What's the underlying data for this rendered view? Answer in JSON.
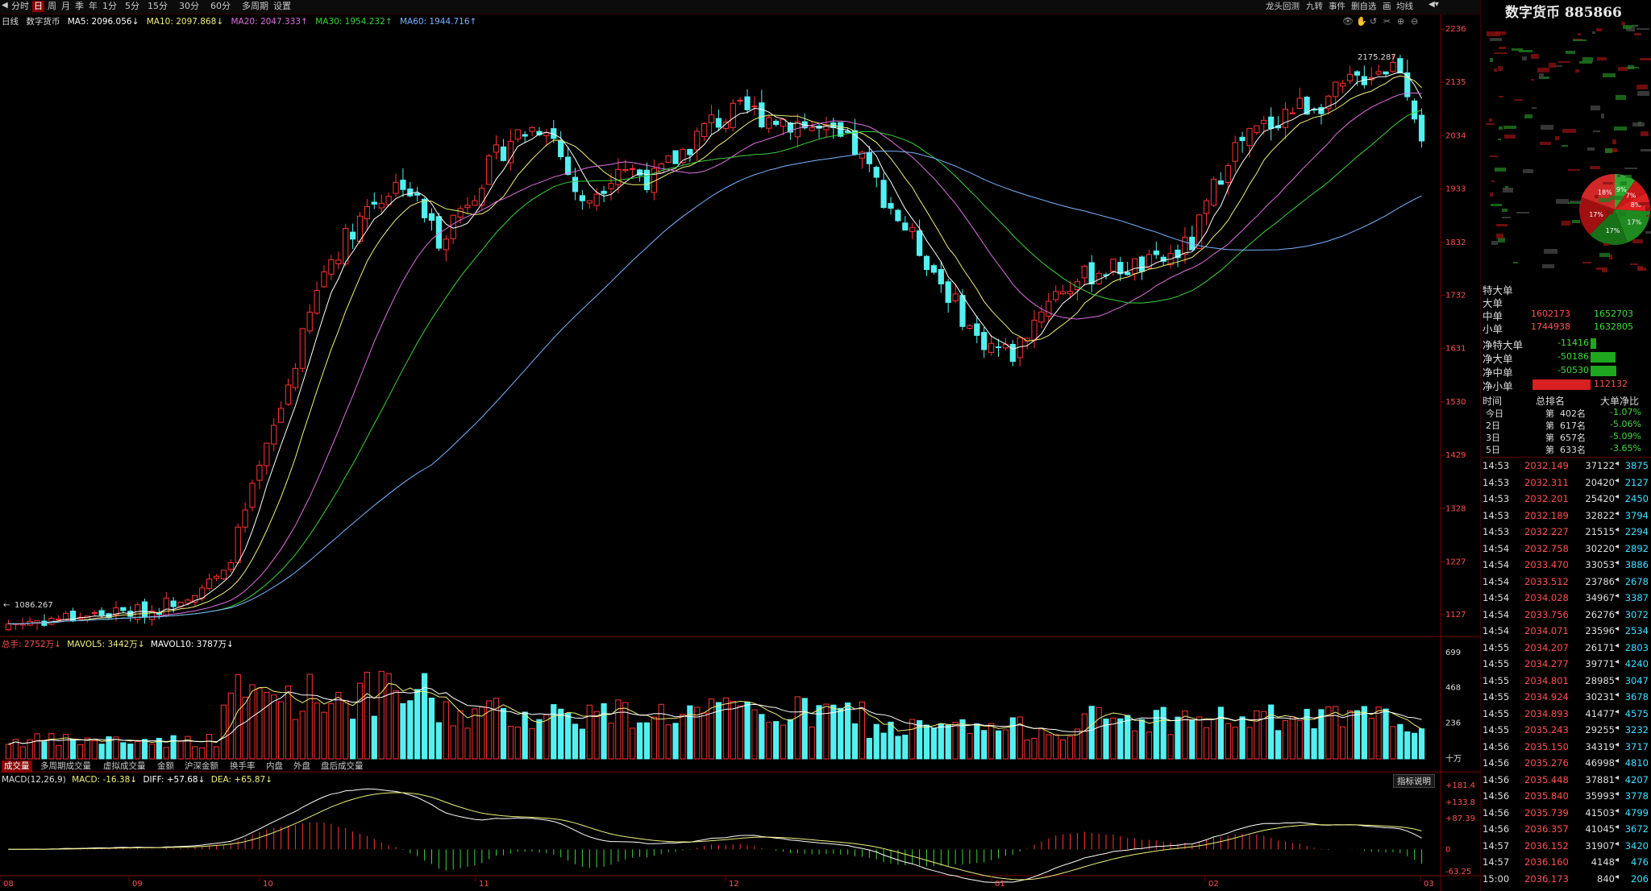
{
  "toolbar": {
    "periods": [
      "分时",
      "日",
      "周",
      "月",
      "季",
      "年",
      "1分",
      "5分",
      "15分",
      "30分",
      "60分",
      "多周期",
      "设置"
    ],
    "active_period": "日",
    "right_items": [
      "龙头回测",
      "九转",
      "事件",
      "删自选",
      "画",
      "均线"
    ]
  },
  "main_legend": {
    "period": "日线",
    "name": "数字货币",
    "ma5": "MA5: 2096.056↓",
    "ma10": "MA10: 2097.868↓",
    "ma20": "MA20: 2047.333↑",
    "ma30": "MA30: 1954.232↑",
    "ma60": "MA60: 1944.716↑"
  },
  "price_axis": [
    "2236",
    "2135",
    "2034",
    "1933",
    "1832",
    "1732",
    "1631",
    "1530",
    "1429",
    "1328",
    "1227",
    "1127"
  ],
  "high_label": "2175.287",
  "low_label": "1086.267",
  "volume_legend": {
    "total": "总手: 2752万↓",
    "mavol5": "MAVOL5: 3442万↓",
    "mavol10": "MAVOL10: 3787万↓"
  },
  "volume_axis": [
    "699",
    "468",
    "236",
    "十万"
  ],
  "volume_tabs": [
    "成交量",
    "多周期成交量",
    "虚拟成交量",
    "金额",
    "沪深金额",
    "换手率",
    "内盘",
    "外盘",
    "盘后成交量"
  ],
  "macd_legend": {
    "params": "MACD(12,26,9)",
    "macd": "MACD: -16.38↓",
    "diff": "DIFF: +57.68↓",
    "dea": "DEA: +65.87↓"
  },
  "macd_button": "指标说明",
  "macd_axis": [
    "+181.4",
    "+133.8",
    "+87.39",
    "0",
    "-63.25"
  ],
  "month_axis": [
    "08",
    "09",
    "10",
    "11",
    "12",
    "01",
    "02",
    "03"
  ],
  "colors": {
    "up": "#ff3232",
    "down": "#54f0f0",
    "ma5": "#ffffff",
    "ma10": "#f0f07a",
    "ma20": "#e070e0",
    "ma30": "#3cd23c",
    "ma60": "#7ab4ff"
  },
  "sidebar": {
    "title": "数字货币 885866",
    "pie_labels": [
      "9%",
      "7%",
      "8%",
      "17%",
      "17%",
      "17%",
      "18%"
    ],
    "orders": [
      {
        "label": "特大单",
        "buy": "",
        "sell": ""
      },
      {
        "label": "大单",
        "buy": "",
        "sell": ""
      },
      {
        "label": "中单",
        "buy": "1602173",
        "sell": "1652703"
      },
      {
        "label": "小单",
        "buy": "1744938",
        "sell": "1632805"
      }
    ],
    "net": [
      {
        "label": "净特大单",
        "value": "-11416",
        "dir": "down",
        "fill": 0.08
      },
      {
        "label": "净大单",
        "value": "-50186",
        "dir": "down",
        "fill": 0.35
      },
      {
        "label": "净中单",
        "value": "-50530",
        "dir": "down",
        "fill": 0.36
      },
      {
        "label": "净小单",
        "value": "112132",
        "dir": "up",
        "fill": 0.8
      }
    ],
    "rank_header": [
      "时间",
      "总排名",
      "大单净比"
    ],
    "ranks": [
      {
        "period": "今日",
        "rank": "第  402名",
        "ratio": "-1.07%"
      },
      {
        "period": "2日",
        "rank": "第  617名",
        "ratio": "-5.06%"
      },
      {
        "period": "3日",
        "rank": "第  657名",
        "ratio": "-5.09%"
      },
      {
        "period": "5日",
        "rank": "第  633名",
        "ratio": "-3.65%"
      }
    ],
    "trades": [
      {
        "t": "14:53",
        "p": "2032.149",
        "v": "37122",
        "n": "3875"
      },
      {
        "t": "14:53",
        "p": "2032.311",
        "v": "20420",
        "n": "2127"
      },
      {
        "t": "14:53",
        "p": "2032.201",
        "v": "25420",
        "n": "2450"
      },
      {
        "t": "14:53",
        "p": "2032.189",
        "v": "32822",
        "n": "3794"
      },
      {
        "t": "14:53",
        "p": "2032.227",
        "v": "21515",
        "n": "2294"
      },
      {
        "t": "14:54",
        "p": "2032.758",
        "v": "30220",
        "n": "2892"
      },
      {
        "t": "14:54",
        "p": "2033.470",
        "v": "33053",
        "n": "3886"
      },
      {
        "t": "14:54",
        "p": "2033.512",
        "v": "23786",
        "n": "2678"
      },
      {
        "t": "14:54",
        "p": "2034.028",
        "v": "34967",
        "n": "3387"
      },
      {
        "t": "14:54",
        "p": "2033.756",
        "v": "26276",
        "n": "3072"
      },
      {
        "t": "14:54",
        "p": "2034.071",
        "v": "23596",
        "n": "2534"
      },
      {
        "t": "14:55",
        "p": "2034.207",
        "v": "26171",
        "n": "2803"
      },
      {
        "t": "14:55",
        "p": "2034.277",
        "v": "39771",
        "n": "4240"
      },
      {
        "t": "14:55",
        "p": "2034.801",
        "v": "28985",
        "n": "3047"
      },
      {
        "t": "14:55",
        "p": "2034.924",
        "v": "30231",
        "n": "3678"
      },
      {
        "t": "14:55",
        "p": "2034.893",
        "v": "41477",
        "n": "4575"
      },
      {
        "t": "14:55",
        "p": "2035.243",
        "v": "29255",
        "n": "3232"
      },
      {
        "t": "14:56",
        "p": "2035.150",
        "v": "34319",
        "n": "3717"
      },
      {
        "t": "14:56",
        "p": "2035.276",
        "v": "46998",
        "n": "4810"
      },
      {
        "t": "14:56",
        "p": "2035.448",
        "v": "37881",
        "n": "4207"
      },
      {
        "t": "14:56",
        "p": "2035.840",
        "v": "35993",
        "n": "3778"
      },
      {
        "t": "14:56",
        "p": "2035.739",
        "v": "41503",
        "n": "4799"
      },
      {
        "t": "14:56",
        "p": "2036.357",
        "v": "41045",
        "n": "3672"
      },
      {
        "t": "14:57",
        "p": "2036.152",
        "v": "31907",
        "n": "3420"
      },
      {
        "t": "14:57",
        "p": "2036.160",
        "v": "4148",
        "n": "476"
      },
      {
        "t": "15:00",
        "p": "2036.173",
        "v": "840",
        "n": "206"
      }
    ]
  },
  "chart_data": {
    "type": "candlestick",
    "ylim": [
      1086,
      2236
    ],
    "anchors": [
      [
        0,
        1110
      ],
      [
        10,
        1125
      ],
      [
        20,
        1135
      ],
      [
        30,
        1200
      ],
      [
        38,
        1520
      ],
      [
        44,
        1780
      ],
      [
        50,
        1900
      ],
      [
        55,
        1950
      ],
      [
        60,
        1840
      ],
      [
        70,
        2030
      ],
      [
        75,
        2060
      ],
      [
        80,
        1900
      ],
      [
        85,
        1980
      ],
      [
        90,
        1950
      ],
      [
        98,
        2060
      ],
      [
        103,
        2080
      ],
      [
        110,
        2060
      ],
      [
        118,
        2010
      ],
      [
        123,
        1900
      ],
      [
        128,
        1800
      ],
      [
        135,
        1650
      ],
      [
        140,
        1620
      ],
      [
        145,
        1730
      ],
      [
        152,
        1780
      ],
      [
        160,
        1790
      ],
      [
        165,
        1830
      ],
      [
        170,
        2000
      ],
      [
        178,
        2080
      ],
      [
        185,
        2110
      ],
      [
        190,
        2160
      ],
      [
        194,
        2170
      ],
      [
        197,
        2040
      ]
    ]
  }
}
